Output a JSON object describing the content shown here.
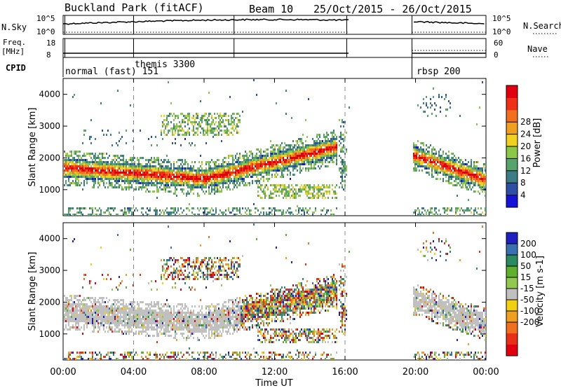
{
  "header": {
    "title": "Buckland Park (fitACF)",
    "beam": "Beam 10",
    "dates": "25/Oct/2015 - 26/Oct/2015"
  },
  "status_panels": {
    "nsky_label": "N.Sky",
    "nsky_ticks": [
      "10^5",
      "10^0"
    ],
    "nsearch_label": "N.Search",
    "nsearch_ticks": [
      "10^5",
      "10^0"
    ],
    "freq_label": "Freq.",
    "freq_unit": "[MHz]",
    "freq_ticks": [
      "18",
      "8"
    ],
    "nave_label": "Nave",
    "nave_ticks": [
      "60",
      "0"
    ],
    "cpid_label": "CPID",
    "cpid_entries": [
      {
        "text": "normal (fast) 151",
        "hour": 0
      },
      {
        "text": "themis 3300",
        "hour": 4
      },
      {
        "text": "rbsp 200",
        "hour": 20
      }
    ]
  },
  "chart_data": [
    {
      "type": "heatmap",
      "name": "power",
      "ylabel": "Slant Range [km]",
      "ylim": [
        180,
        4500
      ],
      "yticks": [
        "1000",
        "2000",
        "3000",
        "4000"
      ],
      "colorbar_label": "Power [dB]",
      "colorbar_ticks": [
        "4",
        "8",
        "12",
        "16",
        "20",
        "24",
        "28"
      ],
      "colorbar_colors": [
        "#1414d8",
        "#2d4fa6",
        "#3c7c86",
        "#56a36b",
        "#8bc848",
        "#f0d020",
        "#f0a020",
        "#f07020",
        "#ee3018",
        "#e00010"
      ],
      "features": [
        {
          "label": "main band",
          "hours": [
            0,
            15.5
          ],
          "range_km": [
            1500,
            2200
          ],
          "trend": "dips to ~1300 near 08:00 then rises to ~2300 by 15:30"
        },
        {
          "label": "upper patch",
          "hours": [
            6,
            10
          ],
          "range_km": [
            2700,
            3400
          ]
        },
        {
          "label": "evening band",
          "hours": [
            20,
            24
          ],
          "range_km": [
            1100,
            2300
          ]
        }
      ]
    },
    {
      "type": "heatmap",
      "name": "velocity",
      "ylabel": "Slant Range [km]",
      "ylim": [
        180,
        4500
      ],
      "yticks": [
        "1000",
        "2000",
        "3000",
        "4000"
      ],
      "colorbar_label": "Velocity [m s-1]",
      "colorbar_ticks": [
        "200",
        "100",
        "50",
        "15",
        "-15",
        "-50",
        "-100",
        "-200"
      ],
      "colorbar_colors": [
        "#2020c0",
        "#3a70b0",
        "#2a8a60",
        "#60b030",
        "#90c850",
        "#c0c0c0",
        "#f0d010",
        "#f0a020",
        "#f07020",
        "#e83018",
        "#e00010"
      ]
    }
  ],
  "x_axis": {
    "xlabel": "Time UT",
    "xticks": [
      "00:00",
      "04:00",
      "08:00",
      "12:00",
      "16:00",
      "20:00",
      "00:00"
    ],
    "xlim_hours": [
      0,
      24
    ],
    "gap_hours": [
      16.2,
      19.8
    ]
  }
}
